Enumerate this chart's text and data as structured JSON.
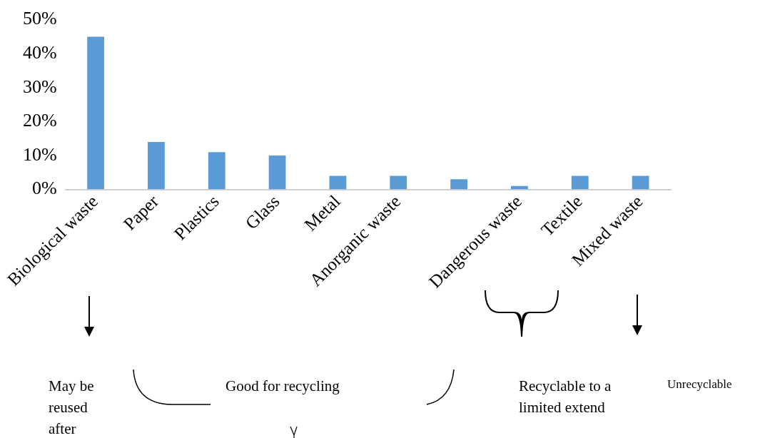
{
  "chart_data": {
    "type": "bar",
    "categories": [
      "Biological waste",
      "Paper",
      "Plastics",
      "Glass",
      "Metal",
      "Anorganic waste",
      null,
      "Dangerous waste",
      "Textile",
      "Mixed waste"
    ],
    "values": [
      45,
      14,
      11,
      10,
      4,
      4,
      3,
      1,
      4,
      4
    ],
    "color": "#5b9bd5",
    "ylim": [
      0,
      50
    ],
    "yticks": [
      {
        "value": 0,
        "label": "0%"
      },
      {
        "value": 10,
        "label": "10%"
      },
      {
        "value": 20,
        "label": "20%"
      },
      {
        "value": 30,
        "label": "30%"
      },
      {
        "value": 40,
        "label": "40%"
      },
      {
        "value": 50,
        "label": "50%"
      }
    ],
    "grid": false,
    "legend": false,
    "annotations": [
      "May be reused after",
      "Good for recycling",
      "Recyclable to a limited extend",
      "Unrecyclable"
    ]
  }
}
